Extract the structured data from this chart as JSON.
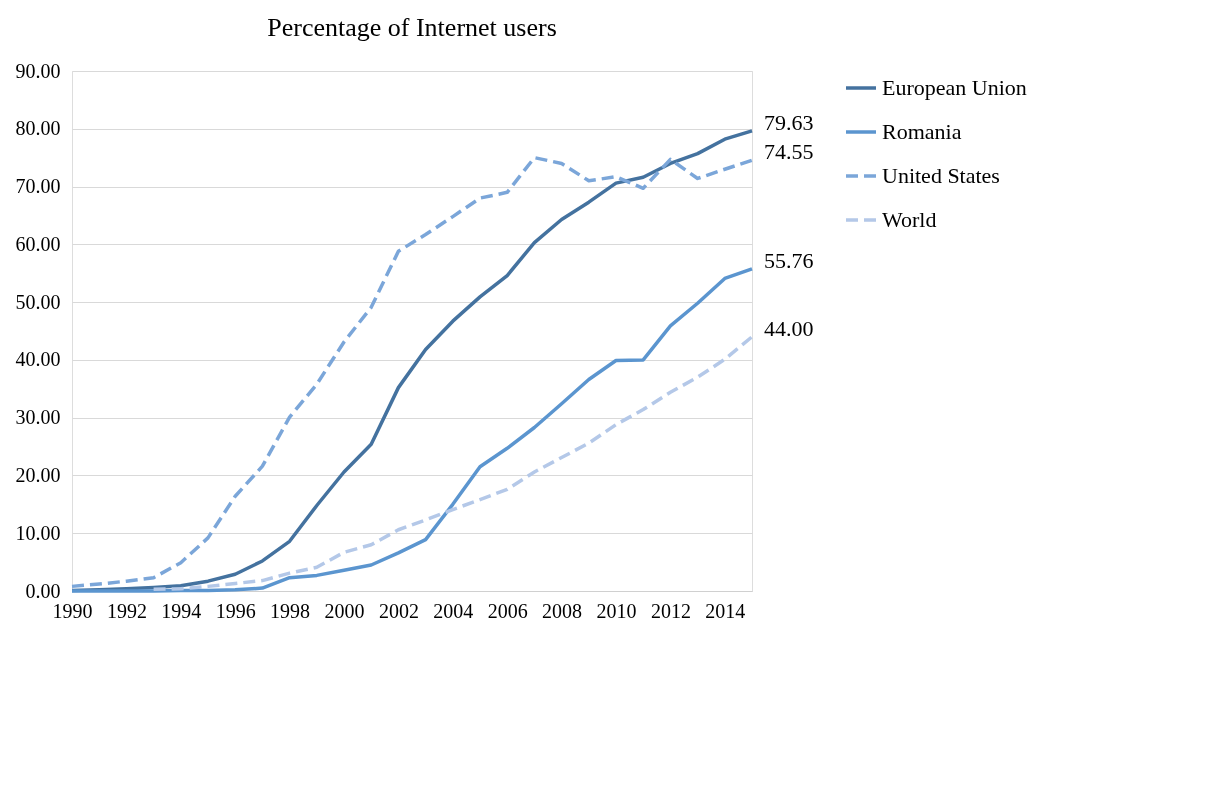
{
  "chart_data": {
    "type": "line",
    "title": "Percentage of Internet users",
    "x": [
      1990,
      1991,
      1992,
      1993,
      1994,
      1995,
      1996,
      1997,
      1998,
      1999,
      2000,
      2001,
      2002,
      2003,
      2004,
      2005,
      2006,
      2007,
      2008,
      2009,
      2010,
      2011,
      2012,
      2013,
      2014,
      2015
    ],
    "xlim": [
      1990,
      2015
    ],
    "xticks": [
      1990,
      1992,
      1994,
      1996,
      1998,
      2000,
      2002,
      2004,
      2006,
      2008,
      2010,
      2012,
      2014
    ],
    "ylim": [
      0,
      90
    ],
    "yticks": [
      {
        "value": 0,
        "label": "0.00"
      },
      {
        "value": 10,
        "label": "10.00"
      },
      {
        "value": 20,
        "label": "20.00"
      },
      {
        "value": 30,
        "label": "30.00"
      },
      {
        "value": 40,
        "label": "40.00"
      },
      {
        "value": 50,
        "label": "50.00"
      },
      {
        "value": 60,
        "label": "60.00"
      },
      {
        "value": 70,
        "label": "70.00"
      },
      {
        "value": 80,
        "label": "80.00"
      },
      {
        "value": 90,
        "label": "90.00"
      }
    ],
    "grid": "y",
    "legend": "right",
    "series": [
      {
        "name": "European Union",
        "color": "#44729f",
        "line_style": "solid",
        "values": [
          0.1,
          0.2,
          0.4,
          0.6,
          0.9,
          1.7,
          2.9,
          5.2,
          8.6,
          14.8,
          20.6,
          25.4,
          35.2,
          41.8,
          46.7,
          50.9,
          54.6,
          60.3,
          64.3,
          67.3,
          70.6,
          71.6,
          74.0,
          75.7,
          78.2,
          79.63
        ],
        "value_labels": [
          null,
          null,
          null,
          null,
          null,
          null,
          null,
          null,
          null,
          null,
          null,
          null,
          null,
          null,
          null,
          null,
          null,
          null,
          null,
          null,
          null,
          null,
          null,
          null,
          null,
          "79.63"
        ]
      },
      {
        "name": "Romania",
        "color": "#5b95cf",
        "line_style": "solid",
        "values": [
          0,
          0,
          0,
          0,
          0.1,
          0.1,
          0.2,
          0.5,
          2.3,
          2.7,
          3.6,
          4.5,
          6.6,
          8.9,
          15.0,
          21.5,
          24.7,
          28.3,
          32.4,
          36.6,
          39.9,
          40.0,
          45.9,
          49.8,
          54.1,
          55.76
        ],
        "value_labels": [
          null,
          null,
          null,
          null,
          null,
          null,
          null,
          null,
          null,
          null,
          null,
          null,
          null,
          null,
          null,
          null,
          null,
          null,
          null,
          null,
          null,
          null,
          null,
          null,
          null,
          "55.76"
        ]
      },
      {
        "name": "United States",
        "color": "#7ba6d9",
        "line_style": "dashed",
        "values": [
          0.8,
          1.2,
          1.7,
          2.3,
          4.9,
          9.2,
          16.4,
          21.6,
          30.1,
          35.8,
          43.1,
          49.1,
          58.8,
          61.7,
          64.8,
          68.0,
          69.0,
          75.0,
          74.0,
          71.0,
          71.7,
          69.7,
          74.7,
          71.4,
          73.0,
          74.55
        ],
        "value_labels": [
          null,
          null,
          null,
          null,
          null,
          null,
          null,
          null,
          null,
          null,
          null,
          null,
          null,
          null,
          null,
          null,
          null,
          null,
          null,
          null,
          null,
          null,
          null,
          null,
          null,
          "74.55"
        ]
      },
      {
        "name": "World",
        "color": "#b4c8e8",
        "line_style": "dashed",
        "values": [
          null,
          null,
          null,
          0.3,
          0.4,
          0.8,
          1.3,
          1.8,
          3.1,
          4.1,
          6.7,
          8.0,
          10.6,
          12.3,
          14.1,
          15.8,
          17.6,
          20.6,
          23.1,
          25.6,
          28.8,
          31.4,
          34.4,
          37.0,
          40.1,
          44.0
        ],
        "value_labels": [
          null,
          null,
          null,
          null,
          null,
          null,
          null,
          null,
          null,
          null,
          null,
          null,
          null,
          null,
          null,
          null,
          null,
          null,
          null,
          null,
          null,
          null,
          null,
          null,
          null,
          "44.00"
        ]
      }
    ]
  }
}
